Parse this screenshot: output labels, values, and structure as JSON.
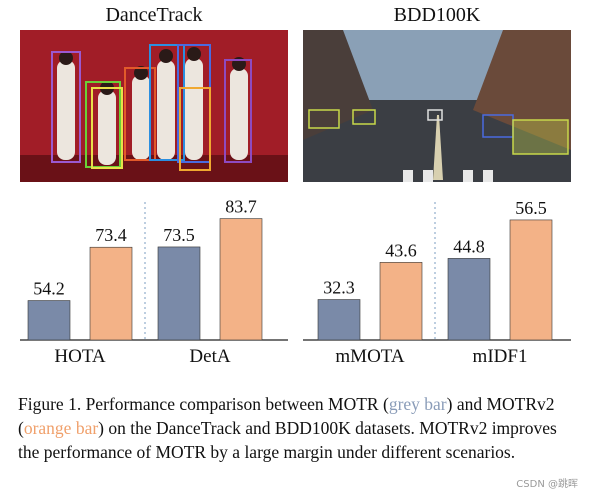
{
  "panels": {
    "left_title": "DanceTrack",
    "right_title": "BDD100K"
  },
  "colors": {
    "motr": "#7a8aa8",
    "motrv2": "#f3b287",
    "bar_stroke": "#333333",
    "divider": "#7b9ec0"
  },
  "chart_data": [
    {
      "type": "bar",
      "categories": [
        "HOTA",
        "DetA"
      ],
      "series": [
        {
          "name": "MOTR",
          "values": [
            54.2,
            73.5
          ]
        },
        {
          "name": "MOTRv2",
          "values": [
            73.4,
            83.7
          ]
        }
      ],
      "ylim": [
        40,
        85
      ]
    },
    {
      "type": "bar",
      "categories": [
        "mMOTA",
        "mIDF1"
      ],
      "series": [
        {
          "name": "MOTR",
          "values": [
            32.3,
            44.8
          ]
        },
        {
          "name": "MOTRv2",
          "values": [
            43.6,
            56.5
          ]
        }
      ],
      "ylim": [
        20,
        58
      ]
    }
  ],
  "caption": {
    "prefix": "Figure 1. Performance comparison between MOTR (",
    "grey": "grey bar",
    "mid": ") and MOTRv2 (",
    "orange": "orange bar",
    "suffix": ") on the DanceTrack and BDD100K datasets. MOTRv2 improves the performance of MOTR by a large margin under different scenarios."
  },
  "watermark": "CSDN @跳晖"
}
